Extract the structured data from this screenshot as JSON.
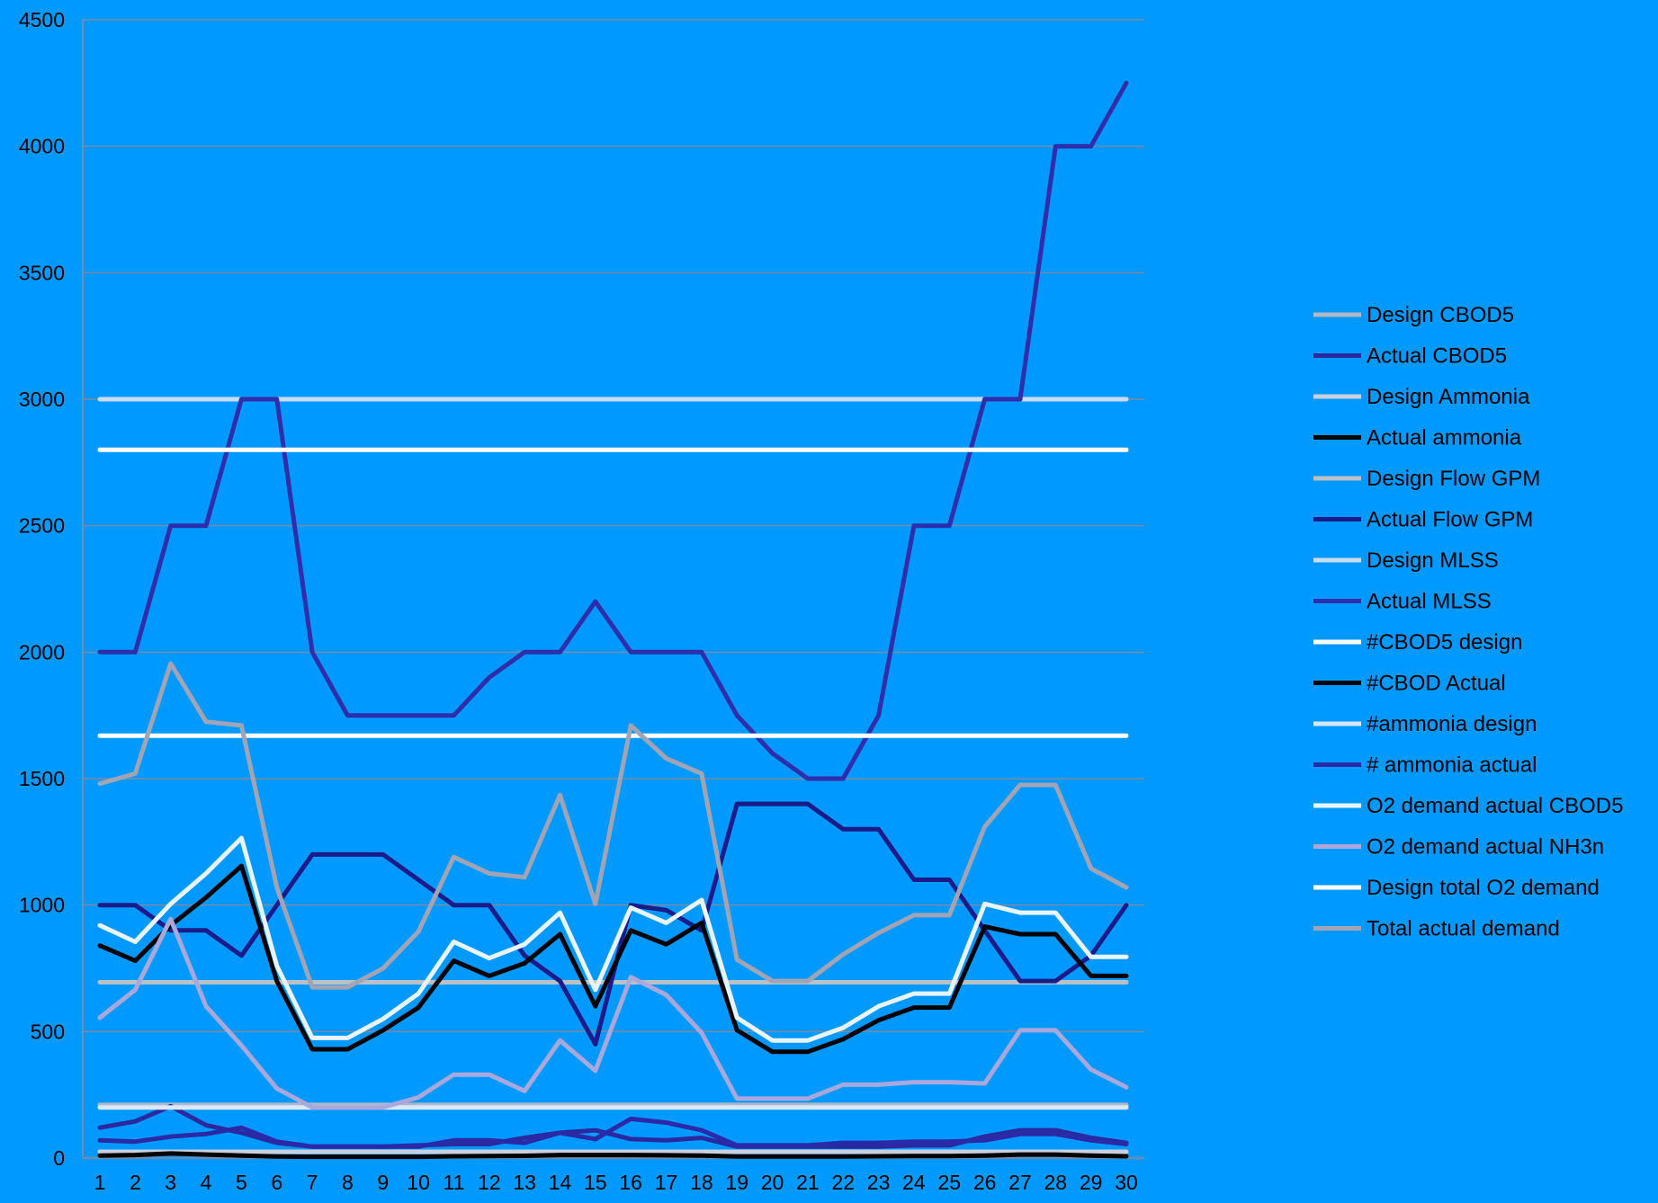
{
  "chart_data": {
    "type": "line",
    "title": "",
    "xlabel": "",
    "ylabel": "",
    "ylim": [
      0,
      4500
    ],
    "yticks": [
      0,
      500,
      1000,
      1500,
      2000,
      2500,
      3000,
      3500,
      4000,
      4500
    ],
    "grid": true,
    "legend_position": "right",
    "background_color": "#0099ff",
    "x": [
      "1",
      "2",
      "3",
      "4",
      "5",
      "6",
      "7",
      "8",
      "9",
      "10",
      "11",
      "12",
      "13",
      "14",
      "15",
      "16",
      "17",
      "18",
      "19",
      "20",
      "21",
      "22",
      "23",
      "24",
      "25",
      "26",
      "27",
      "28",
      "29",
      "30"
    ],
    "series": [
      {
        "name": "Design CBOD5",
        "color": "#b0b8c8",
        "values": [
          210,
          210,
          210,
          210,
          210,
          210,
          210,
          210,
          210,
          210,
          210,
          210,
          210,
          210,
          210,
          210,
          210,
          210,
          210,
          210,
          210,
          210,
          210,
          210,
          210,
          210,
          210,
          210,
          210,
          210
        ]
      },
      {
        "name": "Actual CBOD5",
        "color": "#2a2aa0",
        "values": [
          120,
          145,
          205,
          130,
          100,
          60,
          45,
          45,
          45,
          50,
          55,
          55,
          80,
          100,
          110,
          75,
          70,
          80,
          45,
          45,
          45,
          45,
          45,
          50,
          50,
          85,
          110,
          110,
          80,
          60
        ]
      },
      {
        "name": "Design Ammonia",
        "color": "#c8d0e0",
        "values": [
          25,
          25,
          25,
          25,
          25,
          25,
          25,
          25,
          25,
          25,
          25,
          25,
          25,
          25,
          25,
          25,
          25,
          25,
          25,
          25,
          25,
          25,
          25,
          25,
          25,
          25,
          25,
          25,
          25,
          25
        ]
      },
      {
        "name": "Actual ammonia",
        "color": "#000000",
        "values": [
          10,
          12,
          18,
          14,
          10,
          6,
          5,
          5,
          5,
          5,
          7,
          8,
          9,
          12,
          12,
          12,
          11,
          10,
          6,
          6,
          6,
          6,
          7,
          8,
          8,
          10,
          14,
          14,
          10,
          7
        ]
      },
      {
        "name": "Design Flow GPM",
        "color": "#b8c0c8",
        "values": [
          695,
          695,
          695,
          695,
          695,
          695,
          695,
          695,
          695,
          695,
          695,
          695,
          695,
          695,
          695,
          695,
          695,
          695,
          695,
          695,
          695,
          695,
          695,
          695,
          695,
          695,
          695,
          695,
          695,
          695
        ]
      },
      {
        "name": "Actual Flow GPM",
        "color": "#1a1a88",
        "values": [
          1000,
          1000,
          900,
          900,
          800,
          1000,
          1200,
          1200,
          1200,
          1100,
          1000,
          1000,
          800,
          700,
          450,
          1000,
          980,
          900,
          1400,
          1400,
          1400,
          1300,
          1300,
          1100,
          1100,
          900,
          700,
          700,
          800,
          1000
        ]
      },
      {
        "name": "Design MLSS",
        "color": "#c8dcf0",
        "values": [
          3000,
          3000,
          3000,
          3000,
          3000,
          3000,
          3000,
          3000,
          3000,
          3000,
          3000,
          3000,
          3000,
          3000,
          3000,
          3000,
          3000,
          3000,
          3000,
          3000,
          3000,
          3000,
          3000,
          3000,
          3000,
          3000,
          3000,
          3000,
          3000,
          3000
        ]
      },
      {
        "name": "Actual MLSS",
        "color": "#2e2eaa",
        "values": [
          2000,
          2000,
          2500,
          2500,
          3000,
          3000,
          2000,
          1750,
          1750,
          1750,
          1750,
          1900,
          2000,
          2000,
          2200,
          2000,
          2000,
          2000,
          1750,
          1600,
          1500,
          1500,
          1750,
          2500,
          2500,
          3000,
          3000,
          4000,
          4000,
          4250
        ]
      },
      {
        "name": "#CBOD5 design",
        "color": "#ffffff",
        "values": [
          2800,
          2800,
          2800,
          2800,
          2800,
          2800,
          2800,
          2800,
          2800,
          2800,
          2800,
          2800,
          2800,
          2800,
          2800,
          2800,
          2800,
          2800,
          2800,
          2800,
          2800,
          2800,
          2800,
          2800,
          2800,
          2800,
          2800,
          2800,
          2800,
          2800
        ]
      },
      {
        "name": "#CBOD Actual",
        "color": "#000000",
        "values": [
          840,
          780,
          920,
          1030,
          1155,
          700,
          430,
          430,
          505,
          595,
          780,
          720,
          770,
          885,
          600,
          900,
          845,
          930,
          505,
          420,
          420,
          470,
          545,
          595,
          595,
          915,
          885,
          885,
          720,
          720
        ]
      },
      {
        "name": "#ammonia design",
        "color": "#d8e8f8",
        "values": [
          200,
          200,
          200,
          200,
          200,
          200,
          200,
          200,
          200,
          200,
          200,
          200,
          200,
          200,
          200,
          200,
          200,
          200,
          200,
          200,
          200,
          200,
          200,
          200,
          200,
          200,
          200,
          200,
          200,
          200
        ]
      },
      {
        "name": "# ammonia actual",
        "color": "#2a2aa8",
        "values": [
          70,
          65,
          85,
          95,
          120,
          65,
          45,
          45,
          45,
          45,
          70,
          70,
          60,
          100,
          75,
          155,
          140,
          110,
          50,
          50,
          50,
          60,
          60,
          65,
          65,
          70,
          95,
          95,
          70,
          55
        ]
      },
      {
        "name": "O2 demand actual CBOD5",
        "color": "#e8f4ff",
        "values": [
          920,
          855,
          1005,
          1125,
          1265,
          760,
          475,
          475,
          550,
          650,
          855,
          790,
          845,
          970,
          665,
          990,
          930,
          1020,
          555,
          465,
          465,
          515,
          600,
          650,
          650,
          1005,
          970,
          970,
          795,
          795
        ]
      },
      {
        "name": "O2 demand actual NH3n",
        "color": "#a8a8dc",
        "values": [
          555,
          665,
          945,
          600,
          445,
          275,
          200,
          200,
          200,
          240,
          330,
          330,
          265,
          465,
          345,
          715,
          645,
          495,
          235,
          235,
          235,
          290,
          290,
          300,
          300,
          295,
          505,
          505,
          350,
          280
        ]
      },
      {
        "name": "Design total O2 demand",
        "color": "#ffffff",
        "values": [
          1670,
          1670,
          1670,
          1670,
          1670,
          1670,
          1670,
          1670,
          1670,
          1670,
          1670,
          1670,
          1670,
          1670,
          1670,
          1670,
          1670,
          1670,
          1670,
          1670,
          1670,
          1670,
          1670,
          1670,
          1670,
          1670,
          1670,
          1670,
          1670,
          1670
        ]
      },
      {
        "name": "Total actual demand",
        "color": "#a0a4b4",
        "values": [
          1480,
          1520,
          1955,
          1725,
          1710,
          1070,
          675,
          675,
          750,
          895,
          1190,
          1125,
          1110,
          1435,
          1005,
          1710,
          1580,
          1520,
          785,
          700,
          700,
          805,
          890,
          960,
          960,
          1310,
          1475,
          1475,
          1145,
          1070
        ]
      }
    ]
  }
}
